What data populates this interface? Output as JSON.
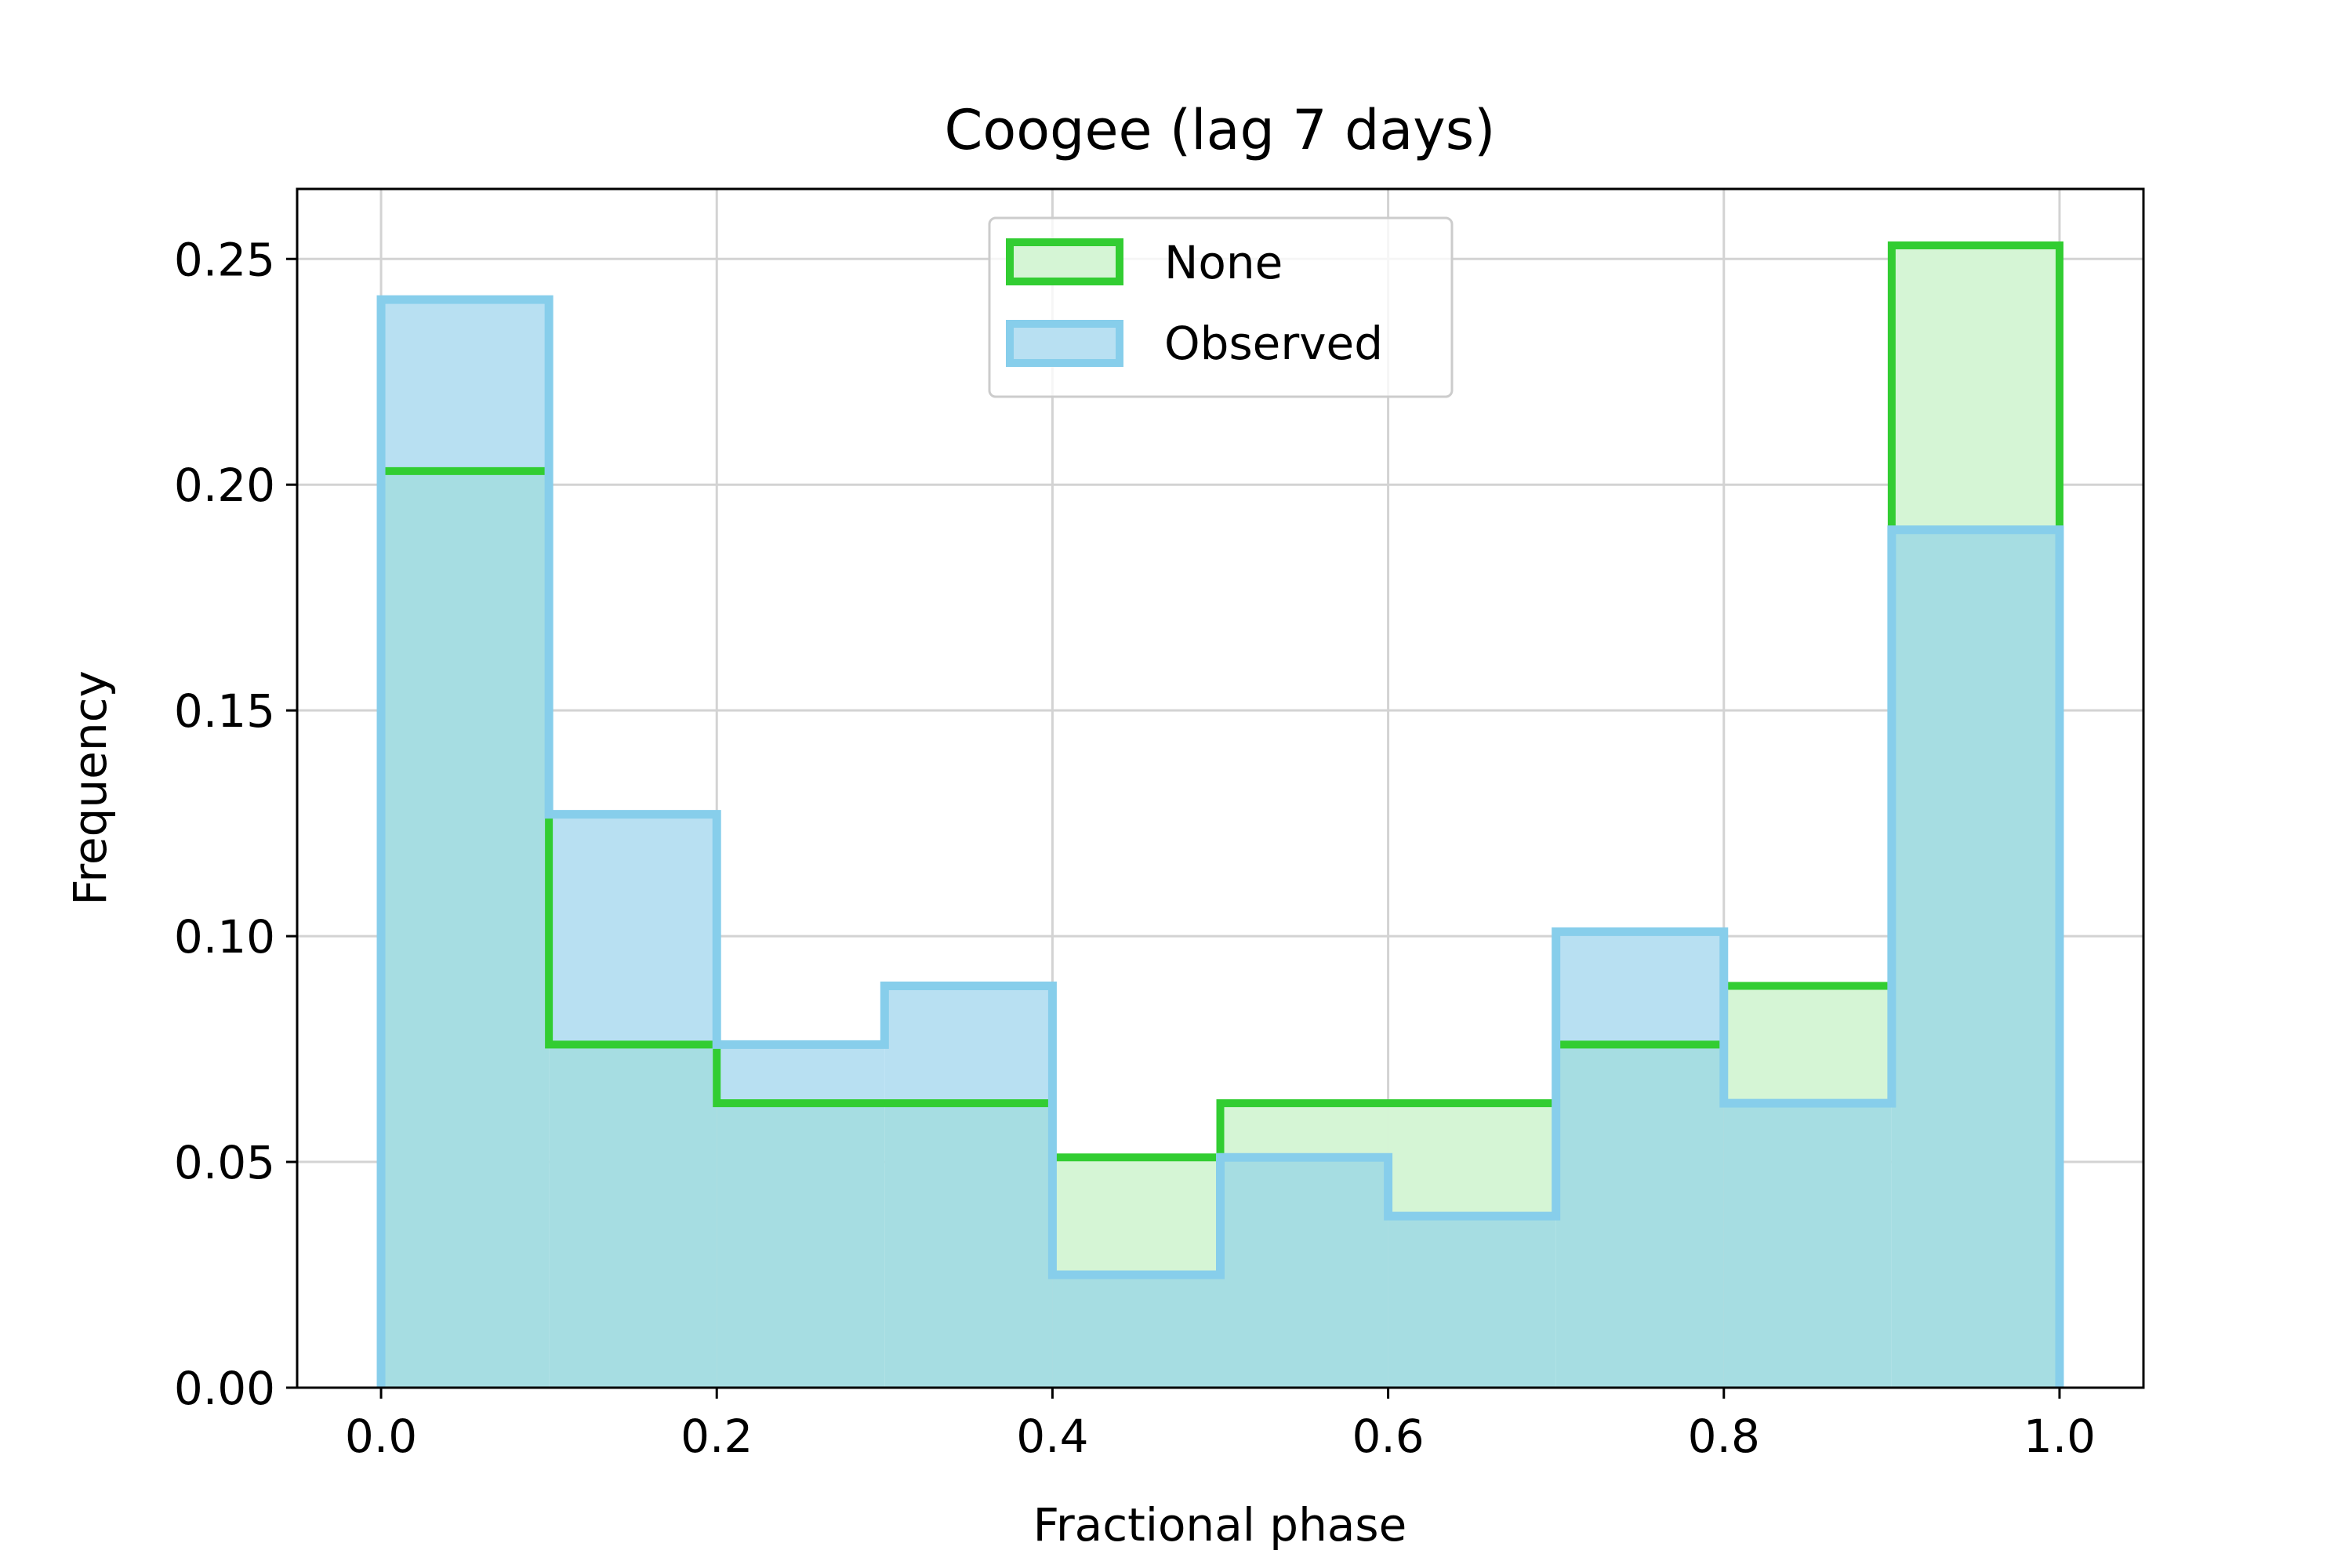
{
  "chart_data": {
    "type": "histogram",
    "title": "Coogee (lag 7 days)",
    "xlabel": "Fractional phase",
    "ylabel": "Frequency",
    "xlim": [
      -0.05,
      1.05
    ],
    "ylim": [
      0,
      0.2655
    ],
    "xticks": [
      0.0,
      0.2,
      0.4,
      0.6,
      0.8,
      1.0
    ],
    "xtick_labels": [
      "0.0",
      "0.2",
      "0.4",
      "0.6",
      "0.8",
      "1.0"
    ],
    "yticks": [
      0.0,
      0.05,
      0.1,
      0.15,
      0.2,
      0.25
    ],
    "ytick_labels": [
      "0.00",
      "0.05",
      "0.10",
      "0.15",
      "0.20",
      "0.25"
    ],
    "grid": true,
    "legend_position": "top-center",
    "bin_edges": [
      0.0,
      0.1,
      0.2,
      0.3,
      0.4,
      0.5,
      0.6,
      0.7,
      0.8,
      0.9,
      1.0
    ],
    "series": [
      {
        "name": "None",
        "color": "#32cd32",
        "fill": "#d5f5d5",
        "values": [
          0.203,
          0.076,
          0.063,
          0.063,
          0.051,
          0.063,
          0.063,
          0.076,
          0.089,
          0.253
        ]
      },
      {
        "name": "Observed",
        "color": "#87ceeb",
        "fill": "#b8e0f2",
        "values": [
          0.241,
          0.127,
          0.076,
          0.089,
          0.025,
          0.051,
          0.038,
          0.101,
          0.063,
          0.19
        ]
      }
    ],
    "overlap_fill": "#a6dde2"
  }
}
